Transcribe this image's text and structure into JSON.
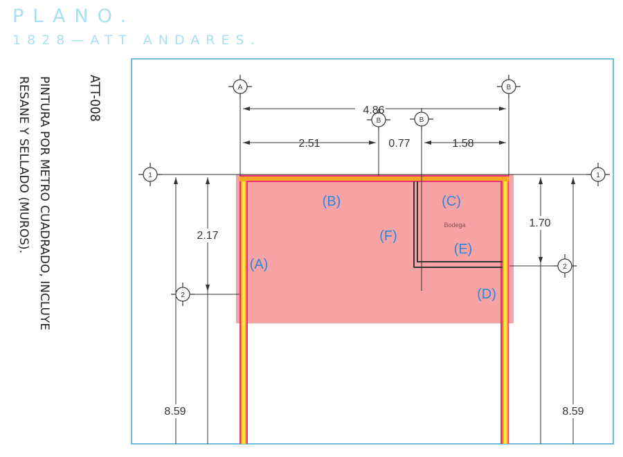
{
  "header": {
    "title": "PLANO.",
    "subtitle": "1828—ATT  ANDARES."
  },
  "sheet": {
    "code": "ATT-008",
    "description_lines": [
      "PINTURA POR METRO CUADRADO, INCLUYE",
      "RESANE Y SELLADO (MUROS)."
    ]
  },
  "dimensions": {
    "overall": "4.86",
    "segments": [
      "2.51",
      "0.77",
      "1.58"
    ],
    "left_vertical": "2.17",
    "right_vertical": "1.70",
    "left_total": "8.59",
    "right_total": "8.59"
  },
  "grid_bubbles": [
    "A",
    "B",
    "B",
    "B",
    "1",
    "1",
    "2",
    "2"
  ],
  "wall_labels": [
    "(A)",
    "(B)",
    "(C)",
    "(D)",
    "(E)",
    "(F)"
  ],
  "room_label": "Bodega",
  "colors": {
    "highlight_fill": "#f7a3a6",
    "wall_outer": "#e8357a",
    "wall_orange": "#f5a623",
    "wall_yellow": "#f7e84a",
    "frame_border": "#3ba9cf",
    "header_text": "#a9dff0",
    "label_text": "#2a86d8"
  }
}
